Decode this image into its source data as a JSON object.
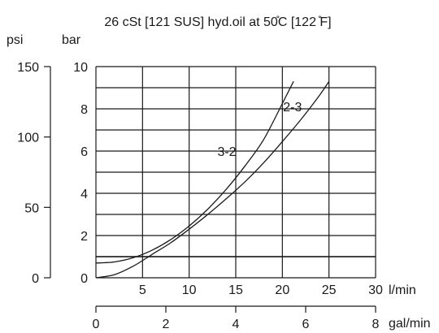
{
  "chart_data": {
    "type": "line",
    "title": "26 cSt [121 SUS] hyd.oil at 50̊C [122 ̊F]",
    "axes": {
      "x_primary": {
        "unit": "l/min",
        "range": [
          0,
          30
        ],
        "ticks": [
          5,
          10,
          15,
          20,
          25,
          30
        ]
      },
      "x_secondary": {
        "unit": "gal/min",
        "range": [
          0,
          8
        ],
        "ticks": [
          0,
          2,
          4,
          6,
          8
        ]
      },
      "y_primary": {
        "unit": "bar",
        "range": [
          0,
          10
        ],
        "ticks": [
          0,
          2,
          4,
          6,
          8,
          10
        ]
      },
      "y_secondary": {
        "unit": "psi",
        "range": [
          0,
          150
        ],
        "ticks": [
          0,
          50,
          100,
          150
        ]
      }
    },
    "grid": true,
    "series": [
      {
        "name": "3-2",
        "x": [
          0,
          2,
          4,
          6,
          8,
          10,
          12,
          14,
          16,
          18,
          20,
          21.2
        ],
        "y": [
          0.7,
          0.75,
          0.95,
          1.3,
          1.8,
          2.45,
          3.25,
          4.2,
          5.3,
          6.55,
          8.25,
          9.3
        ]
      },
      {
        "name": "2-3",
        "x": [
          0,
          2,
          4,
          6,
          8,
          10,
          12,
          14,
          16,
          18,
          20,
          22,
          24,
          25
        ],
        "y": [
          0.0,
          0.15,
          0.55,
          1.1,
          1.65,
          2.3,
          3.0,
          3.75,
          4.55,
          5.45,
          6.45,
          7.5,
          8.65,
          9.3
        ]
      }
    ],
    "reference_line": {
      "y": 1.0
    }
  }
}
